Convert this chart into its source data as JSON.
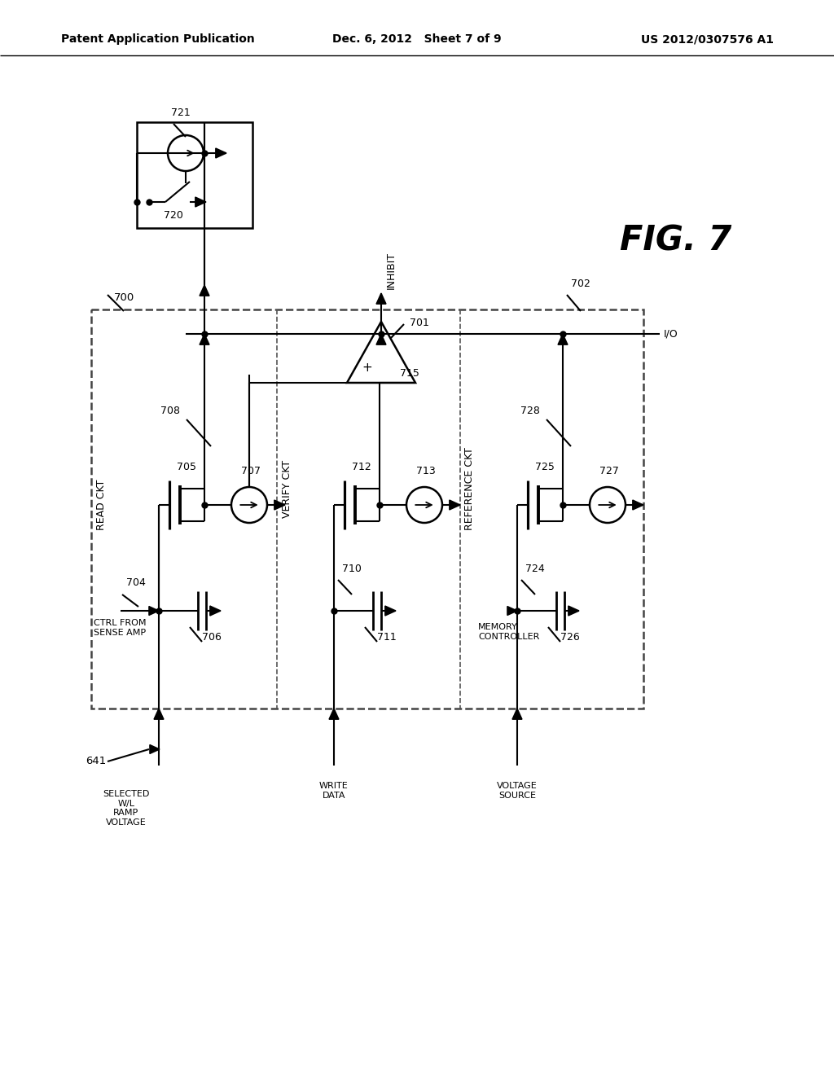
{
  "header_left": "Patent Application Publication",
  "header_mid": "Dec. 6, 2012   Sheet 7 of 9",
  "header_right": "US 2012/0307576 A1",
  "fig_label": "FIG. 7"
}
